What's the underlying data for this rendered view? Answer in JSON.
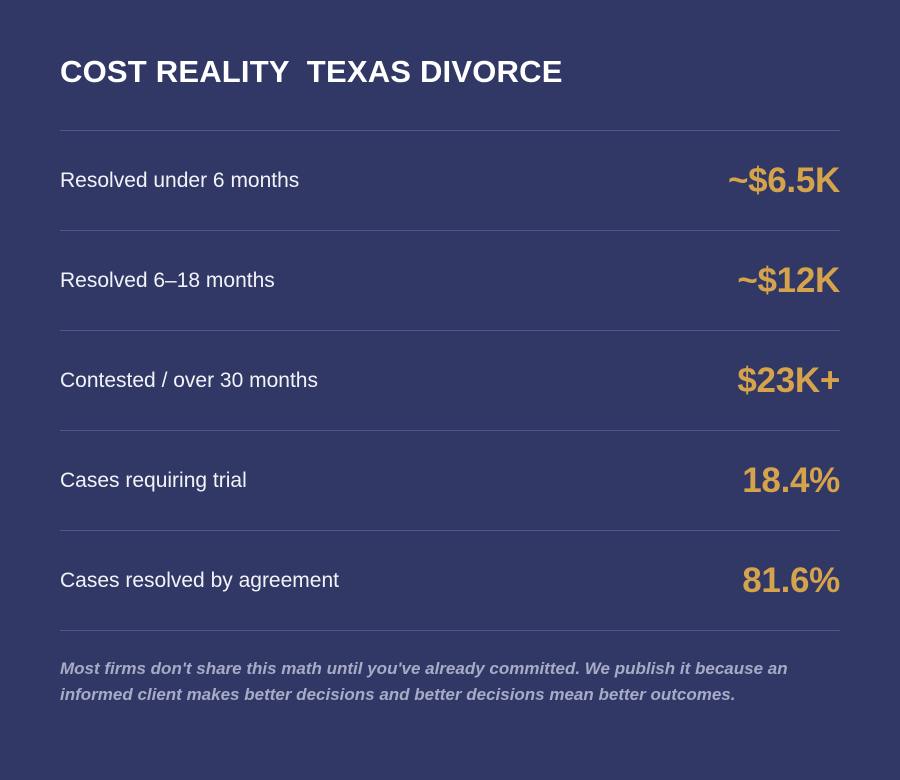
{
  "title": "COST REALITY  TEXAS DIVORCE",
  "rows": [
    {
      "label": "Resolved under 6 months",
      "value": "~$6.5K"
    },
    {
      "label": "Resolved 6–18 months",
      "value": "~$12K"
    },
    {
      "label": "Contested / over 30 months",
      "value": "$23K+"
    },
    {
      "label": "Cases requiring trial",
      "value": "18.4%"
    },
    {
      "label": "Cases resolved by agreement",
      "value": "81.6%"
    }
  ],
  "footnote": "Most firms don't share this math until you've already committed. We publish it because an informed client makes better decisions and better decisions mean better outcomes.",
  "colors": {
    "background": "#313866",
    "accent": "#d4a34b",
    "divider": "#50578a",
    "footnote": "#a7abc6"
  }
}
